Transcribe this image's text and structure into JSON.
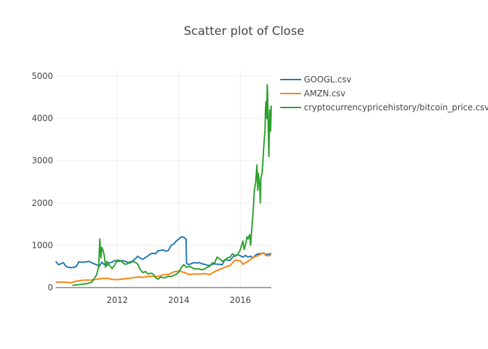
{
  "chart_data": {
    "type": "line",
    "title": "Scatter plot of Close",
    "xlabel": "",
    "ylabel": "",
    "x_range": [
      "2010-01-01",
      "2017-01-01"
    ],
    "ylim": [
      -100,
      5150
    ],
    "x_ticks": [
      {
        "label": "2012",
        "date": "2012-01-01"
      },
      {
        "label": "2014",
        "date": "2014-01-01"
      },
      {
        "label": "2016",
        "date": "2016-01-01"
      }
    ],
    "y_ticks": [
      0,
      1000,
      2000,
      3000,
      4000,
      5000
    ],
    "grid": true,
    "legend_position": "top-right",
    "series": [
      {
        "name": "GOOGL.csv",
        "color": "#1f77b4",
        "points": [
          [
            "2010-01-01",
            620
          ],
          [
            "2010-02-01",
            540
          ],
          [
            "2010-03-01",
            560
          ],
          [
            "2010-04-01",
            590
          ],
          [
            "2010-05-01",
            500
          ],
          [
            "2010-06-01",
            480
          ],
          [
            "2010-07-01",
            470
          ],
          [
            "2010-08-01",
            480
          ],
          [
            "2010-09-01",
            500
          ],
          [
            "2010-10-01",
            610
          ],
          [
            "2010-11-01",
            600
          ],
          [
            "2010-12-01",
            600
          ],
          [
            "2011-01-01",
            610
          ],
          [
            "2011-02-01",
            620
          ],
          [
            "2011-03-01",
            590
          ],
          [
            "2011-04-01",
            560
          ],
          [
            "2011-05-01",
            540
          ],
          [
            "2011-06-01",
            500
          ],
          [
            "2011-07-01",
            600
          ],
          [
            "2011-08-01",
            540
          ],
          [
            "2011-09-01",
            520
          ],
          [
            "2011-10-01",
            590
          ],
          [
            "2011-11-01",
            600
          ],
          [
            "2011-12-01",
            640
          ],
          [
            "2012-01-01",
            620
          ],
          [
            "2012-02-01",
            620
          ],
          [
            "2012-03-01",
            640
          ],
          [
            "2012-04-01",
            620
          ],
          [
            "2012-05-01",
            600
          ],
          [
            "2012-06-01",
            580
          ],
          [
            "2012-07-01",
            630
          ],
          [
            "2012-08-01",
            680
          ],
          [
            "2012-09-01",
            740
          ],
          [
            "2012-10-01",
            690
          ],
          [
            "2012-11-01",
            670
          ],
          [
            "2012-12-01",
            710
          ],
          [
            "2013-01-01",
            750
          ],
          [
            "2013-02-01",
            800
          ],
          [
            "2013-03-01",
            810
          ],
          [
            "2013-04-01",
            800
          ],
          [
            "2013-05-01",
            870
          ],
          [
            "2013-06-01",
            880
          ],
          [
            "2013-07-01",
            890
          ],
          [
            "2013-08-01",
            860
          ],
          [
            "2013-09-01",
            880
          ],
          [
            "2013-10-01",
            1000
          ],
          [
            "2013-11-01",
            1030
          ],
          [
            "2013-12-01",
            1100
          ],
          [
            "2014-01-01",
            1150
          ],
          [
            "2014-02-01",
            1200
          ],
          [
            "2014-03-01",
            1190
          ],
          [
            "2014-03-28",
            1140
          ],
          [
            "2014-04-02",
            570
          ],
          [
            "2014-05-01",
            540
          ],
          [
            "2014-06-01",
            570
          ],
          [
            "2014-07-01",
            590
          ],
          [
            "2014-08-01",
            580
          ],
          [
            "2014-09-01",
            590
          ],
          [
            "2014-10-01",
            560
          ],
          [
            "2014-11-01",
            550
          ],
          [
            "2014-12-01",
            530
          ],
          [
            "2015-01-01",
            520
          ],
          [
            "2015-02-01",
            550
          ],
          [
            "2015-03-01",
            560
          ],
          [
            "2015-04-01",
            550
          ],
          [
            "2015-05-01",
            550
          ],
          [
            "2015-06-01",
            540
          ],
          [
            "2015-07-01",
            660
          ],
          [
            "2015-08-01",
            650
          ],
          [
            "2015-09-01",
            640
          ],
          [
            "2015-10-01",
            720
          ],
          [
            "2015-11-01",
            760
          ],
          [
            "2015-12-01",
            780
          ],
          [
            "2016-01-01",
            750
          ],
          [
            "2016-02-01",
            720
          ],
          [
            "2016-03-01",
            760
          ],
          [
            "2016-04-01",
            720
          ],
          [
            "2016-05-01",
            740
          ],
          [
            "2016-06-01",
            700
          ],
          [
            "2016-07-01",
            770
          ],
          [
            "2016-08-01",
            800
          ],
          [
            "2016-09-01",
            800
          ],
          [
            "2016-10-01",
            820
          ],
          [
            "2016-11-01",
            780
          ],
          [
            "2016-12-01",
            790
          ],
          [
            "2017-01-01",
            810
          ]
        ]
      },
      {
        "name": "AMZN.csv",
        "color": "#ff7f0e",
        "points": [
          [
            "2010-01-01",
            130
          ],
          [
            "2010-03-01",
            130
          ],
          [
            "2010-05-01",
            125
          ],
          [
            "2010-07-01",
            115
          ],
          [
            "2010-09-01",
            150
          ],
          [
            "2010-11-01",
            170
          ],
          [
            "2011-01-01",
            175
          ],
          [
            "2011-03-01",
            175
          ],
          [
            "2011-05-01",
            195
          ],
          [
            "2011-07-01",
            215
          ],
          [
            "2011-09-01",
            220
          ],
          [
            "2011-11-01",
            195
          ],
          [
            "2012-01-01",
            185
          ],
          [
            "2012-03-01",
            200
          ],
          [
            "2012-05-01",
            215
          ],
          [
            "2012-07-01",
            230
          ],
          [
            "2012-09-01",
            250
          ],
          [
            "2012-11-01",
            240
          ],
          [
            "2013-01-01",
            265
          ],
          [
            "2013-03-01",
            265
          ],
          [
            "2013-05-01",
            265
          ],
          [
            "2013-07-01",
            300
          ],
          [
            "2013-09-01",
            310
          ],
          [
            "2013-11-01",
            370
          ],
          [
            "2014-01-01",
            390
          ],
          [
            "2014-03-01",
            360
          ],
          [
            "2014-05-01",
            310
          ],
          [
            "2014-07-01",
            320
          ],
          [
            "2014-09-01",
            320
          ],
          [
            "2014-11-01",
            330
          ],
          [
            "2015-01-01",
            310
          ],
          [
            "2015-03-01",
            375
          ],
          [
            "2015-05-01",
            430
          ],
          [
            "2015-07-01",
            480
          ],
          [
            "2015-09-01",
            520
          ],
          [
            "2015-11-01",
            650
          ],
          [
            "2016-01-01",
            630
          ],
          [
            "2016-02-01",
            550
          ],
          [
            "2016-04-01",
            620
          ],
          [
            "2016-06-01",
            710
          ],
          [
            "2016-08-01",
            760
          ],
          [
            "2016-10-01",
            820
          ],
          [
            "2016-11-01",
            760
          ],
          [
            "2016-12-01",
            750
          ],
          [
            "2017-01-01",
            770
          ]
        ]
      },
      {
        "name": "cryptocurrencypricehistory/bitcoin_price.csv",
        "color": "#2ca02c",
        "points": [
          [
            "2010-07-18",
            50
          ],
          [
            "2011-01-01",
            90
          ],
          [
            "2011-03-01",
            120
          ],
          [
            "2011-05-01",
            300
          ],
          [
            "2011-05-25",
            500
          ],
          [
            "2011-06-08",
            1150
          ],
          [
            "2011-06-20",
            700
          ],
          [
            "2011-07-01",
            950
          ],
          [
            "2011-07-15",
            880
          ],
          [
            "2011-08-01",
            750
          ],
          [
            "2011-08-15",
            480
          ],
          [
            "2011-09-01",
            620
          ],
          [
            "2011-10-01",
            520
          ],
          [
            "2011-11-01",
            450
          ],
          [
            "2011-12-01",
            530
          ],
          [
            "2012-01-01",
            650
          ],
          [
            "2012-02-01",
            640
          ],
          [
            "2012-03-01",
            600
          ],
          [
            "2012-04-01",
            550
          ],
          [
            "2012-05-01",
            560
          ],
          [
            "2012-06-01",
            610
          ],
          [
            "2012-07-01",
            610
          ],
          [
            "2012-08-01",
            600
          ],
          [
            "2012-09-01",
            550
          ],
          [
            "2012-10-01",
            420
          ],
          [
            "2012-11-01",
            350
          ],
          [
            "2012-12-01",
            380
          ],
          [
            "2013-01-01",
            320
          ],
          [
            "2013-02-01",
            340
          ],
          [
            "2013-03-01",
            320
          ],
          [
            "2013-04-01",
            230
          ],
          [
            "2013-05-01",
            200
          ],
          [
            "2013-06-01",
            250
          ],
          [
            "2013-07-01",
            230
          ],
          [
            "2013-08-01",
            240
          ],
          [
            "2013-09-01",
            270
          ],
          [
            "2013-10-01",
            260
          ],
          [
            "2013-11-01",
            290
          ],
          [
            "2013-12-01",
            310
          ],
          [
            "2014-01-01",
            370
          ],
          [
            "2014-02-01",
            480
          ],
          [
            "2014-03-01",
            540
          ],
          [
            "2014-04-01",
            480
          ],
          [
            "2014-05-01",
            500
          ],
          [
            "2014-06-01",
            480
          ],
          [
            "2014-07-01",
            440
          ],
          [
            "2014-08-01",
            440
          ],
          [
            "2014-09-01",
            440
          ],
          [
            "2014-10-01",
            420
          ],
          [
            "2014-11-01",
            440
          ],
          [
            "2014-12-01",
            480
          ],
          [
            "2015-01-01",
            500
          ],
          [
            "2015-02-01",
            580
          ],
          [
            "2015-03-01",
            580
          ],
          [
            "2015-04-01",
            720
          ],
          [
            "2015-05-01",
            680
          ],
          [
            "2015-06-01",
            620
          ],
          [
            "2015-07-01",
            650
          ],
          [
            "2015-08-01",
            700
          ],
          [
            "2015-09-01",
            720
          ],
          [
            "2015-10-01",
            800
          ],
          [
            "2015-11-01",
            740
          ],
          [
            "2015-12-01",
            780
          ],
          [
            "2016-01-01",
            900
          ],
          [
            "2016-02-01",
            1100
          ],
          [
            "2016-02-15",
            900
          ],
          [
            "2016-03-01",
            1000
          ],
          [
            "2016-03-20",
            1200
          ],
          [
            "2016-04-01",
            1150
          ],
          [
            "2016-04-20",
            1250
          ],
          [
            "2016-05-01",
            1000
          ],
          [
            "2016-05-20",
            1500
          ],
          [
            "2016-06-01",
            1800
          ],
          [
            "2016-06-15",
            2300
          ],
          [
            "2016-07-01",
            2500
          ],
          [
            "2016-07-15",
            2900
          ],
          [
            "2016-07-25",
            2300
          ],
          [
            "2016-08-01",
            2700
          ],
          [
            "2016-08-10",
            2550
          ],
          [
            "2016-08-20",
            2300
          ],
          [
            "2016-08-25",
            2000
          ],
          [
            "2016-09-01",
            2600
          ],
          [
            "2016-09-15",
            2700
          ],
          [
            "2016-09-25",
            3000
          ],
          [
            "2016-10-01",
            3200
          ],
          [
            "2016-10-10",
            3500
          ],
          [
            "2016-10-20",
            3700
          ],
          [
            "2016-10-25",
            4200
          ],
          [
            "2016-11-01",
            4400
          ],
          [
            "2016-11-10",
            4000
          ],
          [
            "2016-11-15",
            4800
          ],
          [
            "2016-11-20",
            4600
          ],
          [
            "2016-11-25",
            4000
          ],
          [
            "2016-12-01",
            3400
          ],
          [
            "2016-12-05",
            3100
          ],
          [
            "2016-12-10",
            3700
          ],
          [
            "2016-12-15",
            4200
          ],
          [
            "2016-12-20",
            3900
          ],
          [
            "2016-12-25",
            3700
          ],
          [
            "2017-01-01",
            4300
          ]
        ]
      }
    ]
  }
}
